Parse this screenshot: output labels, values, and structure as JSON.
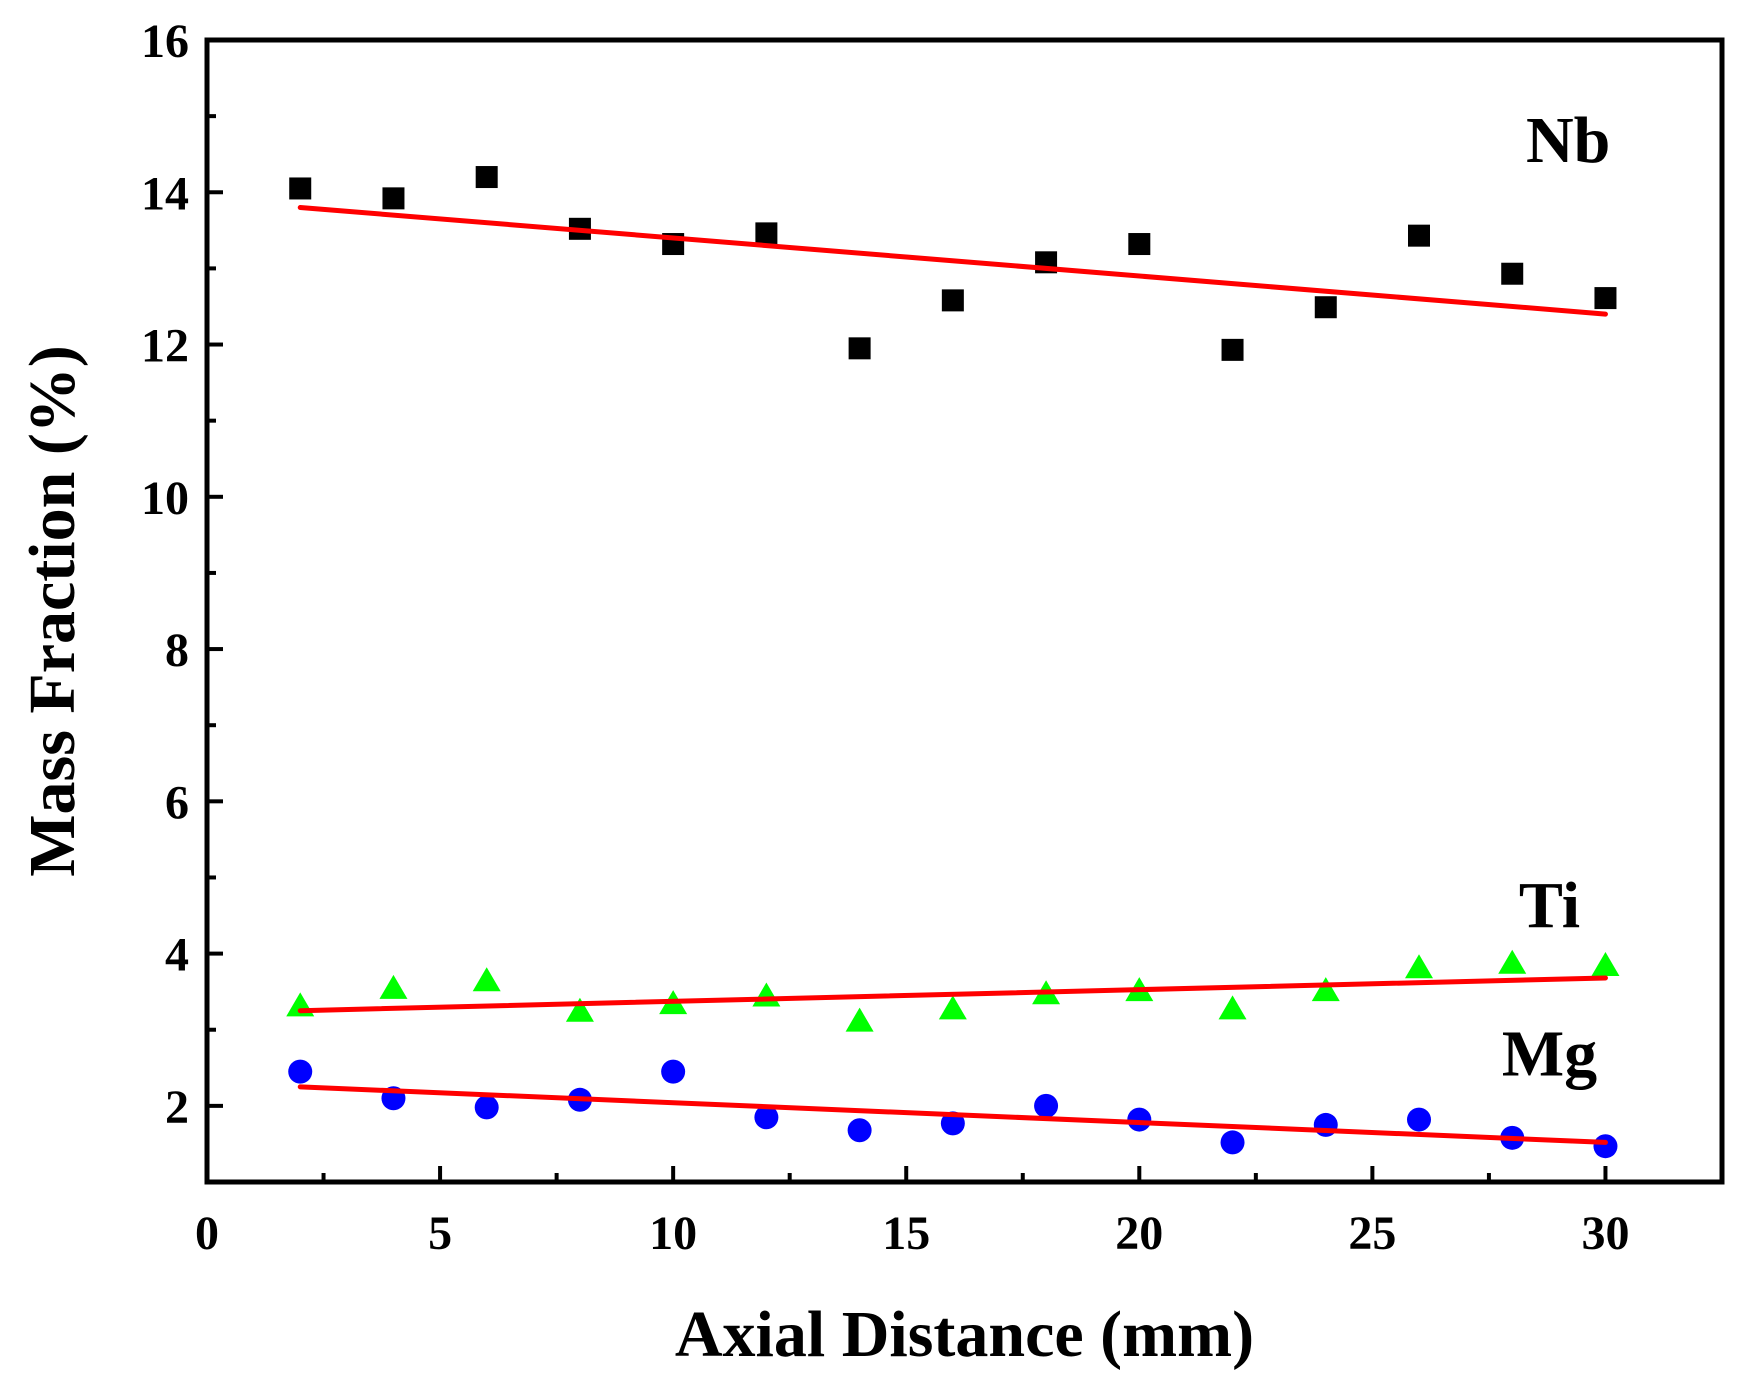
{
  "chart_data": {
    "type": "scatter",
    "title": "",
    "xlabel": "Axial Distance (mm)",
    "ylabel": "Mass Fraction (%)",
    "xlim": [
      0,
      32.5
    ],
    "ylim": [
      1,
      16
    ],
    "x_ticks": [
      0,
      5,
      10,
      15,
      20,
      25,
      30
    ],
    "y_ticks": [
      2,
      4,
      6,
      8,
      10,
      12,
      14,
      16
    ],
    "x_tick_labels": [
      "0",
      "5",
      "10",
      "15",
      "20",
      "25",
      "30"
    ],
    "y_tick_labels": [
      "2",
      "4",
      "6",
      "8",
      "10",
      "12",
      "14",
      "16"
    ],
    "grid": false,
    "fit_color": "#ff0000",
    "series": [
      {
        "name": "Nb",
        "label": "Nb",
        "marker": "square",
        "color": "#000000",
        "x": [
          2,
          4,
          6,
          8,
          10,
          12,
          14,
          16,
          18,
          20,
          22,
          24,
          26,
          28,
          30
        ],
        "values": [
          14.05,
          13.92,
          14.2,
          13.52,
          13.32,
          13.46,
          11.95,
          12.58,
          13.08,
          13.32,
          11.93,
          12.49,
          13.43,
          12.93,
          12.61
        ],
        "fit": {
          "x": [
            2,
            30
          ],
          "y": [
            13.8,
            12.4
          ]
        }
      },
      {
        "name": "Ti",
        "label": "Ti",
        "marker": "triangle",
        "color": "#00ff00",
        "x": [
          2,
          4,
          6,
          8,
          10,
          12,
          14,
          16,
          18,
          20,
          22,
          24,
          26,
          28,
          30
        ],
        "values": [
          3.32,
          3.55,
          3.65,
          3.25,
          3.35,
          3.45,
          3.12,
          3.28,
          3.48,
          3.52,
          3.28,
          3.52,
          3.82,
          3.88,
          3.85
        ],
        "fit": {
          "x": [
            2,
            30
          ],
          "y": [
            3.25,
            3.68
          ]
        }
      },
      {
        "name": "Mg",
        "label": "Mg",
        "marker": "circle",
        "color": "#0000ff",
        "x": [
          2,
          4,
          6,
          8,
          10,
          12,
          14,
          16,
          18,
          20,
          22,
          24,
          26,
          28,
          30
        ],
        "values": [
          2.45,
          2.1,
          1.98,
          2.08,
          2.45,
          1.85,
          1.68,
          1.77,
          2.0,
          1.82,
          1.52,
          1.75,
          1.82,
          1.58,
          1.47
        ],
        "fit": {
          "x": [
            2,
            30
          ],
          "y": [
            2.25,
            1.52
          ]
        }
      }
    ]
  }
}
